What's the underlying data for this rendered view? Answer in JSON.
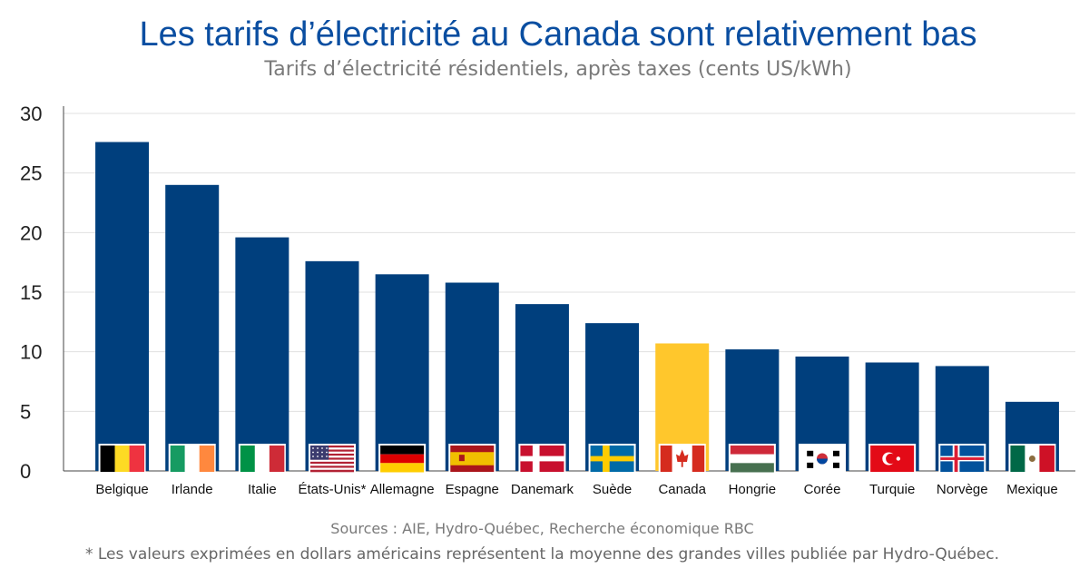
{
  "header": {
    "title": "Les tarifs d’électricité au Canada sont relativement bas",
    "subtitle": "Tarifs d’électricité résidentiels, après taxes (cents US/kWh)"
  },
  "footer": {
    "source": "Sources : AIE, Hydro-Québec, Recherche économique RBC",
    "note": "* Les valeurs exprimées en dollars américains représentent la moyenne des grandes villes publiée par Hydro-Québec."
  },
  "chart_data": {
    "type": "bar",
    "title": "Les tarifs d’électricité au Canada sont relativement bas",
    "subtitle": "Tarifs d’électricité résidentiels, après taxes (cents US/kWh)",
    "categories": [
      "Belgique",
      "Irlande",
      "Italie",
      "États-Unis*",
      "Allemagne",
      "Espagne",
      "Danemark",
      "Suède",
      "Canada",
      "Hongrie",
      "Corée",
      "Turquie",
      "Norvège",
      "Mexique"
    ],
    "values": [
      27.6,
      24.0,
      19.6,
      17.6,
      16.5,
      15.8,
      14.0,
      12.4,
      10.7,
      10.2,
      9.6,
      9.1,
      8.8,
      5.8
    ],
    "ylim": [
      0,
      30
    ],
    "yticks": [
      0,
      5,
      10,
      15,
      20,
      25,
      30
    ],
    "grid": true,
    "colors": {
      "default": "#003f7d",
      "highlight": "#ffc72c",
      "grid": "#e0e0e0",
      "axis": "#444444"
    },
    "highlight_category": "Canada",
    "flag_icons": [
      "belgium-flag-icon",
      "ireland-flag-icon",
      "italy-flag-icon",
      "usa-flag-icon",
      "germany-flag-icon",
      "spain-flag-icon",
      "denmark-flag-icon",
      "sweden-flag-icon",
      "canada-flag-icon",
      "hungary-flag-icon",
      "korea-flag-icon",
      "turkey-flag-icon",
      "iceland-flag-icon",
      "mexico-flag-icon"
    ]
  }
}
